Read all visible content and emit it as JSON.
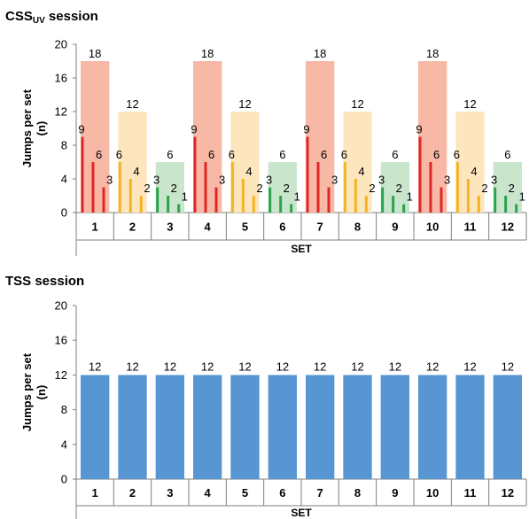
{
  "charts": [
    {
      "title_main": "CSS",
      "title_sub": "UV",
      "title_rest": " session"
    },
    {
      "title_main": "TSS session",
      "title_sub": "",
      "title_rest": ""
    }
  ],
  "chart_data": [
    {
      "type": "bar",
      "title": "CSSUV session",
      "xlabel": "SET",
      "ylabel": "Jumps per set (n)",
      "ylim": [
        0,
        20
      ],
      "yticks": [
        0,
        4,
        8,
        12,
        16,
        20
      ],
      "categories": [
        "1",
        "2",
        "3",
        "4",
        "5",
        "6",
        "7",
        "8",
        "9",
        "10",
        "11",
        "12"
      ],
      "series": [
        {
          "values": [
            18,
            12,
            6,
            18,
            12,
            6,
            18,
            12,
            6,
            18,
            12,
            6
          ]
        }
      ],
      "sub_bars": [
        [
          9,
          6,
          3
        ],
        [
          6,
          4,
          2
        ],
        [
          3,
          2,
          1
        ],
        [
          9,
          6,
          3
        ],
        [
          6,
          4,
          2
        ],
        [
          3,
          2,
          1
        ],
        [
          9,
          6,
          3
        ],
        [
          6,
          4,
          2
        ],
        [
          3,
          2,
          1
        ],
        [
          9,
          6,
          3
        ],
        [
          6,
          4,
          2
        ],
        [
          3,
          2,
          1
        ]
      ],
      "group_colors": {
        "18": {
          "bg": "#f8b8a6",
          "line": "#e02727"
        },
        "12": {
          "bg": "#fde5bd",
          "line": "#f4b320"
        },
        "6": {
          "bg": "#c9e6cd",
          "line": "#2aa34a"
        }
      },
      "grid": false
    },
    {
      "type": "bar",
      "title": "TSS session",
      "xlabel": "SET",
      "ylabel": "Jumps per set (n)",
      "ylim": [
        0,
        20
      ],
      "yticks": [
        0,
        4,
        8,
        12,
        16,
        20
      ],
      "categories": [
        "1",
        "2",
        "3",
        "4",
        "5",
        "6",
        "7",
        "8",
        "9",
        "10",
        "11",
        "12"
      ],
      "series": [
        {
          "values": [
            12,
            12,
            12,
            12,
            12,
            12,
            12,
            12,
            12,
            12,
            12,
            12
          ],
          "color": "#5796d3"
        }
      ],
      "grid": false
    }
  ]
}
